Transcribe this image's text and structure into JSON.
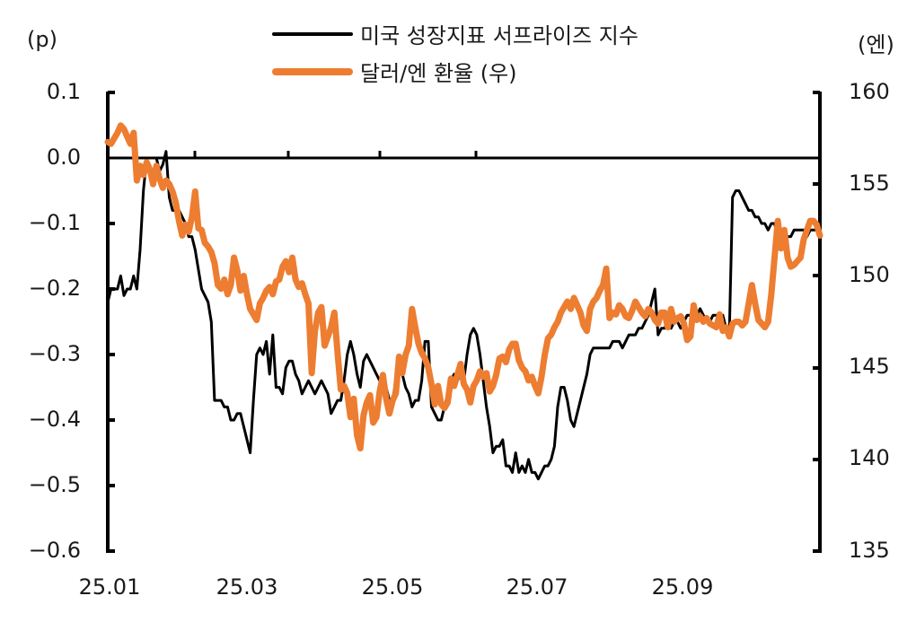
{
  "legend": {
    "series1": {
      "label": "미국 성장지표 서프라이즈 지수",
      "color": "#000000"
    },
    "series2": {
      "label": "달러/엔 환율 (우)",
      "color": "#ED7D31"
    }
  },
  "axes": {
    "left_unit": "(p)",
    "right_unit": "(엔)",
    "left_ticks": [
      "0.1",
      "0.0",
      "−0.1",
      "−0.2",
      "−0.3",
      "−0.4",
      "−0.5",
      "−0.6"
    ],
    "right_ticks": [
      "160",
      "155",
      "150",
      "145",
      "140",
      "135"
    ],
    "x_ticks": [
      "25.01",
      "25.03",
      "25.05",
      "25.07",
      "25.09"
    ]
  },
  "chart_data": {
    "type": "line",
    "title": "",
    "xlabel": "",
    "ylabel": "(p)",
    "ylabel_right": "(엔)",
    "ylim": [
      -0.6,
      0.1
    ],
    "ylim_right": [
      135,
      160
    ],
    "x_tick_labels": [
      "25.01",
      "25.03",
      "25.05",
      "25.07",
      "25.09"
    ],
    "legend_position": "top-center",
    "grid": false,
    "series": [
      {
        "name": "미국 성장지표 서프라이즈 지수",
        "axis": "left",
        "color": "#000000",
        "x": [
          0,
          1,
          2,
          3,
          4,
          5,
          6,
          7,
          8,
          9,
          10,
          11,
          12,
          13,
          14,
          15,
          16,
          17,
          18,
          19,
          20,
          21,
          22,
          23,
          24,
          25,
          26,
          27,
          28,
          29,
          30,
          31,
          32,
          33,
          34,
          35,
          36,
          37,
          38,
          39,
          40,
          41,
          42,
          43,
          44,
          45,
          46,
          47,
          48,
          49,
          50,
          51,
          52,
          53,
          54,
          55,
          56,
          57,
          58,
          59,
          60,
          61,
          62,
          63,
          64,
          65,
          66,
          67,
          68,
          69,
          70,
          71,
          72,
          73,
          74,
          75,
          76,
          77,
          78,
          79,
          80,
          81,
          82,
          83,
          84,
          85,
          86,
          87,
          88,
          89,
          90,
          91,
          92,
          93,
          94,
          95,
          96,
          97,
          98,
          99,
          100,
          101,
          102,
          103,
          104,
          105,
          106,
          107,
          108,
          109,
          110,
          111,
          112,
          113,
          114,
          115,
          116,
          117,
          118,
          119,
          120,
          121,
          122,
          123,
          124,
          125,
          126,
          127,
          128,
          129,
          130,
          131,
          132,
          133,
          134,
          135,
          136,
          137,
          138,
          139,
          140,
          141,
          142,
          143,
          144,
          145,
          146,
          147,
          148,
          149,
          150,
          151,
          152,
          153,
          154,
          155,
          156,
          157,
          158,
          159,
          160,
          161,
          162,
          163,
          164,
          165,
          166,
          167,
          168,
          169,
          170,
          171,
          172,
          173,
          174,
          175,
          176,
          177,
          178,
          179,
          180,
          181,
          182,
          183,
          184,
          185,
          186,
          187,
          188,
          189,
          190,
          191,
          192,
          193,
          194,
          195,
          196,
          197,
          198,
          199,
          200,
          201,
          202,
          203,
          204,
          205,
          206,
          207,
          208,
          209,
          210,
          211,
          212,
          213,
          214,
          215,
          216,
          217,
          218,
          219,
          220
        ],
        "values": [
          -0.22,
          -0.2,
          -0.2,
          -0.2,
          -0.18,
          -0.21,
          -0.2,
          -0.2,
          -0.18,
          -0.2,
          -0.14,
          -0.05,
          0.0,
          0.0,
          0.0,
          0.0,
          -0.02,
          -0.01,
          0.01,
          -0.06,
          -0.08,
          -0.08,
          -0.08,
          -0.09,
          -0.1,
          -0.12,
          -0.12,
          -0.14,
          -0.17,
          -0.2,
          -0.21,
          -0.22,
          -0.25,
          -0.37,
          -0.37,
          -0.37,
          -0.38,
          -0.38,
          -0.4,
          -0.4,
          -0.39,
          -0.39,
          -0.41,
          -0.43,
          -0.45,
          -0.37,
          -0.3,
          -0.29,
          -0.3,
          -0.28,
          -0.33,
          -0.27,
          -0.35,
          -0.35,
          -0.36,
          -0.32,
          -0.31,
          -0.31,
          -0.33,
          -0.34,
          -0.36,
          -0.35,
          -0.34,
          -0.35,
          -0.36,
          -0.35,
          -0.34,
          -0.35,
          -0.36,
          -0.39,
          -0.38,
          -0.37,
          -0.37,
          -0.34,
          -0.3,
          -0.28,
          -0.3,
          -0.33,
          -0.35,
          -0.31,
          -0.3,
          -0.31,
          -0.32,
          -0.33,
          -0.34,
          -0.35,
          -0.35,
          -0.37,
          -0.37,
          -0.34,
          -0.32,
          -0.33,
          -0.35,
          -0.36,
          -0.38,
          -0.37,
          -0.37,
          -0.34,
          -0.28,
          -0.28,
          -0.38,
          -0.39,
          -0.4,
          -0.4,
          -0.38,
          -0.36,
          -0.34,
          -0.33,
          -0.34,
          -0.33,
          -0.34,
          -0.3,
          -0.27,
          -0.26,
          -0.27,
          -0.3,
          -0.34,
          -0.38,
          -0.41,
          -0.45,
          -0.44,
          -0.44,
          -0.43,
          -0.47,
          -0.47,
          -0.48,
          -0.45,
          -0.48,
          -0.47,
          -0.48,
          -0.46,
          -0.48,
          -0.48,
          -0.49,
          -0.48,
          -0.47,
          -0.47,
          -0.46,
          -0.44,
          -0.38,
          -0.35,
          -0.35,
          -0.37,
          -0.4,
          -0.41,
          -0.39,
          -0.37,
          -0.35,
          -0.33,
          -0.3,
          -0.29,
          -0.29,
          -0.29,
          -0.29,
          -0.29,
          -0.29,
          -0.28,
          -0.28,
          -0.28,
          -0.29,
          -0.28,
          -0.27,
          -0.27,
          -0.27,
          -0.26,
          -0.26,
          -0.25,
          -0.24,
          -0.22,
          -0.2,
          -0.27,
          -0.26,
          -0.26,
          -0.25,
          -0.26,
          -0.25,
          -0.25,
          -0.26,
          -0.25,
          -0.24,
          -0.24,
          -0.25,
          -0.24,
          -0.23,
          -0.24,
          -0.25,
          -0.25,
          -0.24,
          -0.24,
          -0.25,
          -0.24,
          -0.26,
          -0.27,
          -0.06,
          -0.05,
          -0.05,
          -0.06,
          -0.07,
          -0.08,
          -0.08,
          -0.09,
          -0.09,
          -0.1,
          -0.1,
          -0.11,
          -0.1,
          -0.1,
          -0.12,
          -0.12,
          -0.12,
          -0.12,
          -0.12,
          -0.11,
          -0.11,
          -0.11,
          -0.11,
          -0.12,
          -0.11,
          -0.11,
          -0.11,
          -0.11
        ]
      },
      {
        "name": "달러/엔 환율 (우)",
        "axis": "right",
        "color": "#ED7D31",
        "x": [
          0,
          1,
          2,
          3,
          4,
          5,
          6,
          7,
          8,
          9,
          10,
          11,
          12,
          13,
          14,
          15,
          16,
          17,
          18,
          19,
          20,
          21,
          22,
          23,
          24,
          25,
          26,
          27,
          28,
          29,
          30,
          31,
          32,
          33,
          34,
          35,
          36,
          37,
          38,
          39,
          40,
          41,
          42,
          43,
          44,
          45,
          46,
          47,
          48,
          49,
          50,
          51,
          52,
          53,
          54,
          55,
          56,
          57,
          58,
          59,
          60,
          61,
          62,
          63,
          64,
          65,
          66,
          67,
          68,
          69,
          70,
          71,
          72,
          73,
          74,
          75,
          76,
          77,
          78,
          79,
          80,
          81,
          82,
          83,
          84,
          85,
          86,
          87,
          88,
          89,
          90,
          91,
          92,
          93,
          94,
          95,
          96,
          97,
          98,
          99,
          100,
          101,
          102,
          103,
          104,
          105,
          106,
          107,
          108,
          109,
          110,
          111,
          112,
          113,
          114,
          115,
          116,
          117,
          118,
          119,
          120,
          121,
          122,
          123,
          124,
          125,
          126,
          127,
          128,
          129,
          130,
          131,
          132,
          133,
          134,
          135,
          136,
          137,
          138,
          139,
          140,
          141,
          142,
          143,
          144,
          145,
          146,
          147,
          148,
          149,
          150,
          151,
          152,
          153,
          154,
          155,
          156,
          157,
          158,
          159,
          160,
          161,
          162,
          163,
          164,
          165,
          166,
          167,
          168,
          169,
          170,
          171,
          172,
          173,
          174,
          175,
          176,
          177,
          178,
          179,
          180,
          181,
          182,
          183,
          184,
          185,
          186,
          187,
          188,
          189,
          190,
          191,
          192,
          193,
          194,
          195,
          196,
          197,
          198,
          199,
          200,
          201,
          202,
          203,
          204,
          205,
          206,
          207,
          208,
          209,
          210,
          211,
          212,
          213,
          214,
          215,
          216,
          217,
          218,
          219,
          220
        ],
        "values": [
          157.3,
          157.2,
          157.5,
          157.8,
          158.2,
          158.0,
          157.6,
          157.2,
          157.8,
          155.2,
          156.0,
          155.5,
          156.2,
          155.8,
          155.0,
          156.0,
          155.3,
          154.8,
          155.2,
          155.0,
          154.6,
          154.0,
          153.0,
          152.2,
          152.8,
          152.4,
          153.2,
          154.6,
          152.6,
          152.5,
          151.8,
          151.6,
          151.3,
          150.7,
          149.5,
          149.3,
          149.8,
          149.0,
          149.5,
          151.0,
          150.3,
          149.2,
          150.0,
          149.0,
          148.2,
          147.9,
          147.6,
          148.5,
          148.8,
          149.2,
          149.4,
          149.0,
          149.7,
          149.8,
          150.5,
          150.8,
          150.2,
          151.0,
          149.8,
          149.4,
          149.6,
          149.0,
          148.5,
          144.7,
          147.0,
          148.0,
          148.3,
          146.2,
          146.7,
          147.2,
          148.0,
          145.8,
          143.8,
          144.0,
          143.6,
          142.3,
          143.3,
          141.3,
          140.6,
          142.4,
          143.1,
          143.5,
          142.0,
          142.3,
          143.7,
          144.6,
          143.3,
          142.5,
          143.2,
          143.6,
          145.6,
          144.7,
          145.7,
          146.2,
          148.2,
          147.2,
          146.3,
          145.8,
          145.5,
          145.0,
          144.1,
          143.0,
          144.0,
          143.0,
          142.8,
          143.1,
          144.4,
          144.0,
          144.6,
          145.2,
          144.1,
          143.8,
          143.1,
          144.0,
          144.3,
          144.8,
          144.5,
          144.7,
          143.7,
          144.0,
          144.6,
          145.5,
          145.6,
          145.3,
          146.0,
          146.3,
          146.3,
          145.4,
          145.0,
          144.8,
          144.3,
          144.5,
          144.0,
          143.6,
          144.5,
          145.7,
          146.6,
          146.8,
          147.2,
          147.5,
          148.0,
          148.3,
          148.6,
          148.2,
          148.8,
          148.4,
          148.0,
          147.3,
          147.0,
          148.2,
          148.6,
          148.8,
          149.2,
          149.5,
          150.4,
          147.7,
          148.0,
          147.9,
          148.4,
          148.2,
          147.8,
          147.7,
          148.1,
          148.6,
          148.3,
          148.0,
          147.8,
          148.2,
          148.0,
          147.6,
          147.4,
          148.0,
          148.0,
          147.2,
          148.2,
          147.5,
          147.7,
          147.8,
          147.4,
          146.5,
          146.7,
          148.4,
          147.6,
          147.8,
          147.5,
          147.7,
          147.4,
          147.3,
          147.2,
          147.9,
          147.0,
          147.2,
          146.7,
          147.4,
          147.5,
          147.5,
          147.3,
          147.5,
          148.5,
          149.5,
          148.5,
          147.6,
          147.4,
          147.2,
          147.5,
          149.0,
          151.0,
          153.0,
          151.5,
          152.5,
          151.0,
          150.5,
          150.6,
          150.8,
          151.0,
          152.0,
          152.5,
          153.0,
          153.0,
          152.8,
          152.2
        ]
      }
    ]
  }
}
